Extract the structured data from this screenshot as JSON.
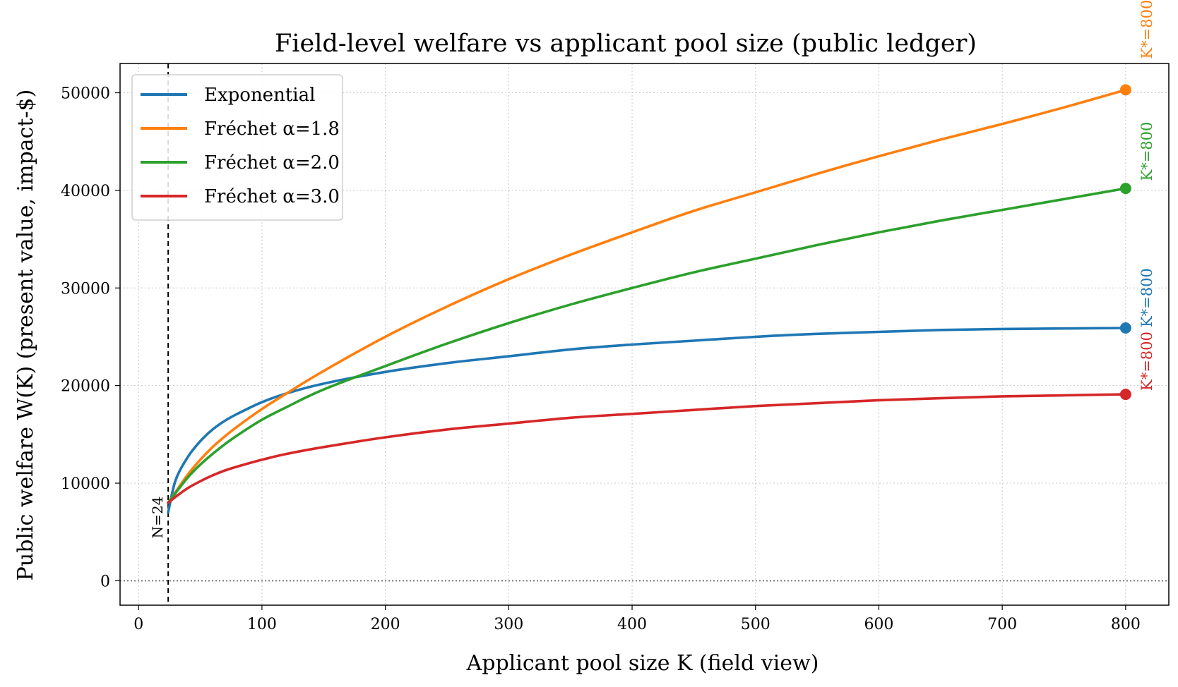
{
  "chart_data": {
    "type": "line",
    "title": "Field-level welfare vs applicant pool size (public ledger)",
    "xlabel": "Applicant pool size K (field view)",
    "ylabel": "Public welfare W(K) (present value, impact-$)",
    "xlim": [
      -15,
      835
    ],
    "ylim": [
      -2500,
      53000
    ],
    "xticks": [
      0,
      100,
      200,
      300,
      400,
      500,
      600,
      700,
      800
    ],
    "xtick_labels": [
      "0",
      "100",
      "200",
      "300",
      "400",
      "500",
      "600",
      "700",
      "800"
    ],
    "yticks": [
      0,
      10000,
      20000,
      30000,
      40000,
      50000
    ],
    "ytick_labels": [
      "0",
      "10000",
      "20000",
      "30000",
      "40000",
      "50000"
    ],
    "grid": true,
    "legend_position": "top-left",
    "series": [
      {
        "name": "Exponential",
        "color": "#1f77b4",
        "x": [
          24,
          30,
          40,
          50,
          60,
          70,
          80,
          100,
          120,
          150,
          200,
          250,
          300,
          350,
          400,
          450,
          500,
          550,
          600,
          650,
          700,
          750,
          800
        ],
        "values": [
          7000,
          10300,
          12700,
          14300,
          15500,
          16400,
          17100,
          18300,
          19200,
          20200,
          21400,
          22300,
          23000,
          23700,
          24200,
          24600,
          25000,
          25300,
          25500,
          25700,
          25800,
          25850,
          25900
        ],
        "endpoint": 25900,
        "annotation": "K*=800"
      },
      {
        "name": "Fréchet α=1.8",
        "color": "#ff7f0e",
        "x": [
          24,
          30,
          40,
          50,
          60,
          70,
          80,
          100,
          120,
          150,
          200,
          250,
          300,
          350,
          400,
          450,
          500,
          550,
          600,
          650,
          700,
          750,
          800
        ],
        "values": [
          8000,
          9100,
          10900,
          12400,
          13700,
          14800,
          15800,
          17600,
          19200,
          21500,
          25000,
          28100,
          30900,
          33400,
          35700,
          37900,
          39800,
          41700,
          43500,
          45200,
          46800,
          48500,
          50300
        ],
        "endpoint": 50300,
        "annotation": "K*=800"
      },
      {
        "name": "Fréchet α=2.0",
        "color": "#2ca02c",
        "x": [
          24,
          30,
          40,
          50,
          60,
          70,
          80,
          100,
          120,
          150,
          200,
          250,
          300,
          350,
          400,
          450,
          500,
          550,
          600,
          650,
          700,
          750,
          800
        ],
        "values": [
          8000,
          9000,
          10600,
          11900,
          13000,
          14000,
          14900,
          16500,
          17800,
          19600,
          22000,
          24300,
          26400,
          28300,
          30000,
          31600,
          33000,
          34400,
          35700,
          36900,
          38000,
          39100,
          40200
        ],
        "endpoint": 40200,
        "annotation": "K*=800"
      },
      {
        "name": "Fréchet α=3.0",
        "color": "#d62728",
        "x": [
          24,
          30,
          40,
          50,
          60,
          70,
          80,
          100,
          120,
          150,
          200,
          250,
          300,
          350,
          400,
          450,
          500,
          550,
          600,
          650,
          700,
          750,
          800
        ],
        "values": [
          8000,
          8600,
          9500,
          10200,
          10800,
          11300,
          11700,
          12400,
          13000,
          13700,
          14700,
          15500,
          16100,
          16700,
          17100,
          17500,
          17900,
          18200,
          18500,
          18700,
          18900,
          19000,
          19100
        ],
        "endpoint": 19100,
        "annotation": "K*=800"
      }
    ],
    "reference_lines": {
      "vertical": {
        "x": 24,
        "label": "N=24"
      },
      "horizontal": {
        "y": 0
      }
    }
  }
}
